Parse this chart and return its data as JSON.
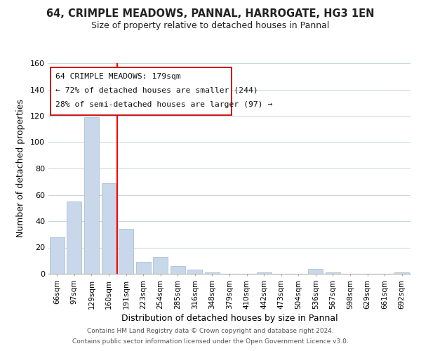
{
  "title": "64, CRIMPLE MEADOWS, PANNAL, HARROGATE, HG3 1EN",
  "subtitle": "Size of property relative to detached houses in Pannal",
  "xlabel": "Distribution of detached houses by size in Pannal",
  "ylabel": "Number of detached properties",
  "footer_line1": "Contains HM Land Registry data © Crown copyright and database right 2024.",
  "footer_line2": "Contains public sector information licensed under the Open Government Licence v3.0.",
  "bin_labels": [
    "66sqm",
    "97sqm",
    "129sqm",
    "160sqm",
    "191sqm",
    "223sqm",
    "254sqm",
    "285sqm",
    "316sqm",
    "348sqm",
    "379sqm",
    "410sqm",
    "442sqm",
    "473sqm",
    "504sqm",
    "536sqm",
    "567sqm",
    "598sqm",
    "629sqm",
    "661sqm",
    "692sqm"
  ],
  "bar_values": [
    28,
    55,
    119,
    69,
    34,
    9,
    13,
    6,
    3,
    1,
    0,
    0,
    1,
    0,
    0,
    4,
    1,
    0,
    0,
    0,
    1
  ],
  "bar_color": "#c8d8ea",
  "bar_edge_color": "#a0b8cc",
  "red_line_index": 4,
  "annotation_text_line1": "64 CRIMPLE MEADOWS: 179sqm",
  "annotation_text_line2": "← 72% of detached houses are smaller (244)",
  "annotation_text_line3": "28% of semi-detached houses are larger (97) →",
  "ylim": [
    0,
    160
  ],
  "yticks": [
    0,
    20,
    40,
    60,
    80,
    100,
    120,
    140,
    160
  ],
  "background_color": "#ffffff",
  "grid_color": "#c8d4de"
}
